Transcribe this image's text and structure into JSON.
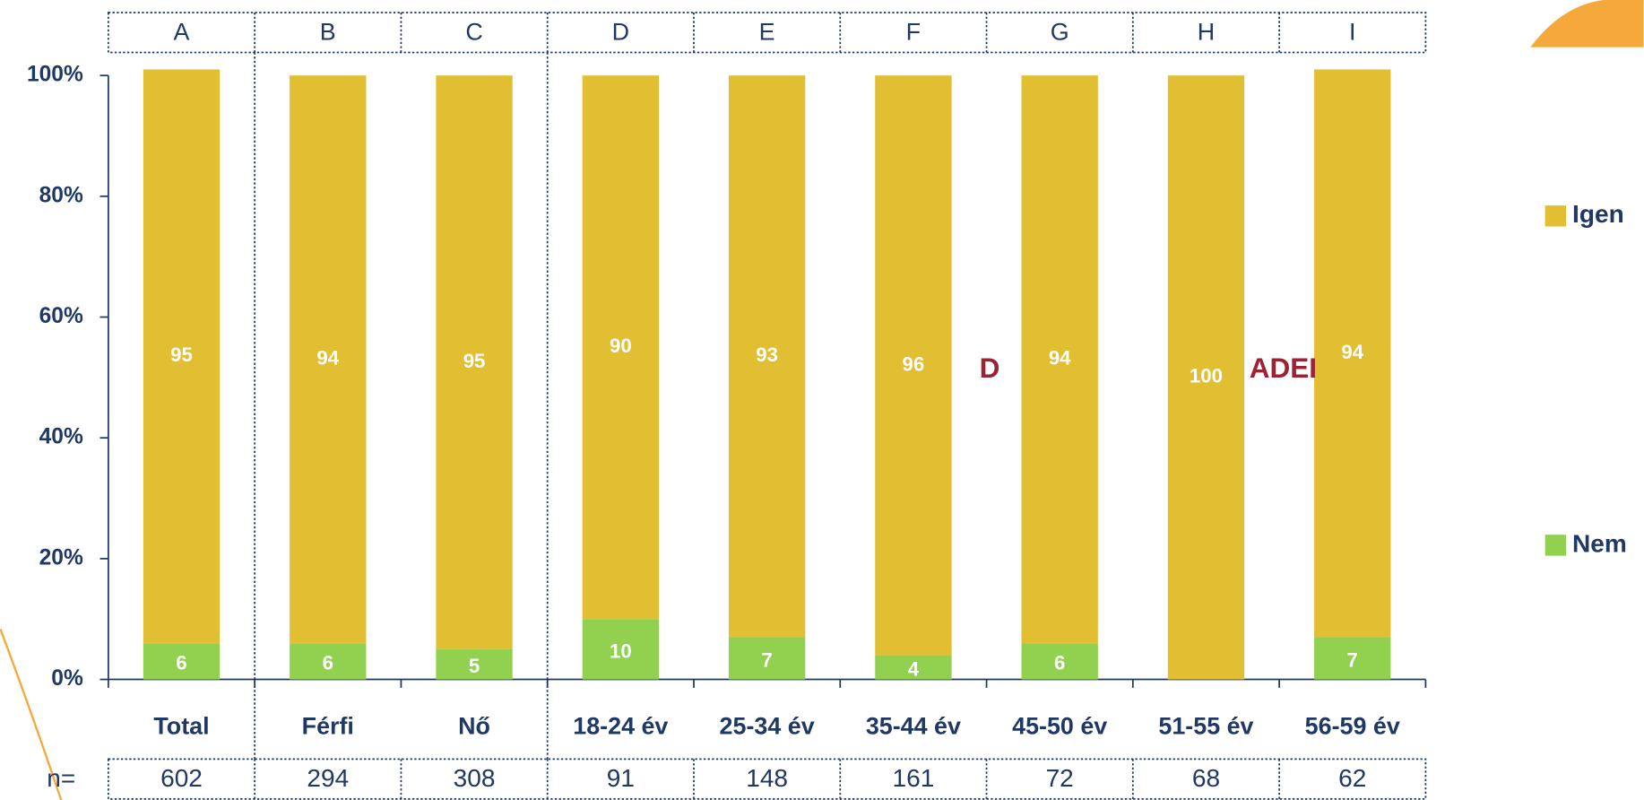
{
  "chart_data": {
    "type": "stacked_bar",
    "column_letters": [
      "A",
      "B",
      "C",
      "D",
      "E",
      "F",
      "G",
      "H",
      "I"
    ],
    "categories": [
      "Total",
      "Férfi",
      "Nő",
      "18-24 év",
      "25-34 év",
      "35-44 év",
      "45-50 év",
      "51-55 év",
      "56-59 év"
    ],
    "n_label": "n=",
    "n_values": [
      602,
      294,
      308,
      91,
      148,
      161,
      72,
      68,
      62
    ],
    "series": [
      {
        "name": "Nem",
        "color": "#92D050",
        "values": [
          6,
          6,
          5,
          10,
          7,
          4,
          6,
          null,
          7
        ]
      },
      {
        "name": "Igen",
        "color": "#E2BE32",
        "values": [
          95,
          94,
          95,
          90,
          93,
          96,
          94,
          100,
          94
        ]
      }
    ],
    "annotations": [
      "D",
      "ADEI"
    ],
    "ylim": [
      0,
      100
    ],
    "yticks": [
      {
        "value": 0,
        "label": "0%"
      },
      {
        "value": 20,
        "label": "20%"
      },
      {
        "value": 40,
        "label": "40%"
      },
      {
        "value": 60,
        "label": "60%"
      },
      {
        "value": 80,
        "label": "80%"
      },
      {
        "value": 100,
        "label": "100%"
      }
    ]
  }
}
